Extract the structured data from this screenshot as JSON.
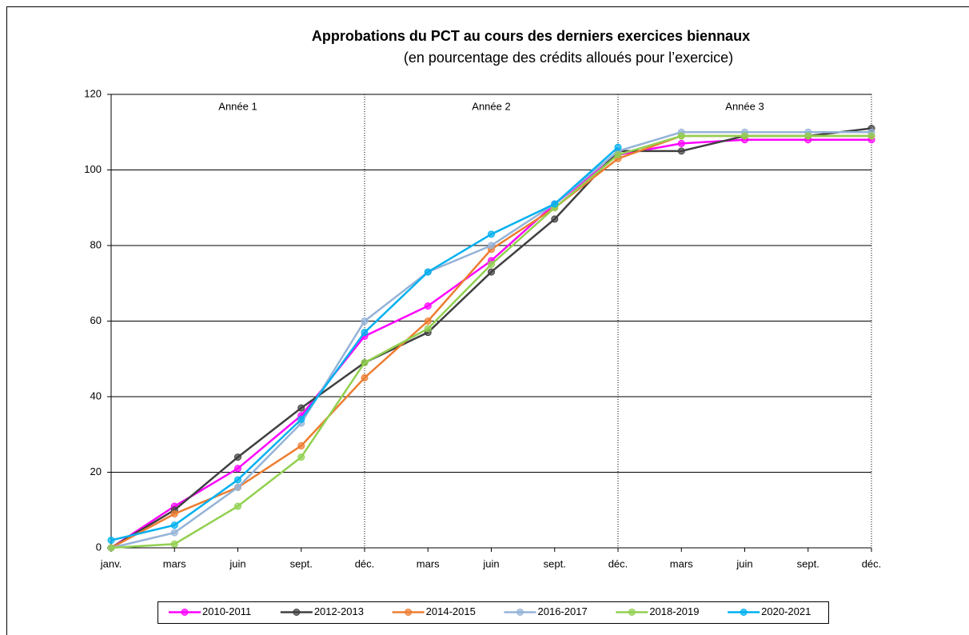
{
  "chart_data": {
    "type": "line",
    "title": "Approbations du PCT au cours des derniers exercices biennaux",
    "subtitle": "(en pourcentage des crédits alloués pour l’exercice)",
    "annotations": [
      "Année 1",
      "Année 2",
      "Année 3"
    ],
    "categories": [
      "janv.",
      "mars",
      "juin",
      "sept.",
      "déc.",
      "mars",
      "juin",
      "sept.",
      "déc.",
      "mars",
      "juin",
      "sept.",
      "déc."
    ],
    "ylim": [
      0,
      120
    ],
    "yticks": [
      0,
      20,
      40,
      60,
      80,
      100,
      120
    ],
    "grid": true,
    "legend": "bottom",
    "series": [
      {
        "name": "2010-2011",
        "color": "#ff00ff",
        "values": [
          0,
          11,
          21,
          35,
          56,
          64,
          76,
          91,
          104,
          107,
          108,
          108,
          108
        ]
      },
      {
        "name": "2012-2013",
        "color": "#404040",
        "values": [
          0,
          10,
          24,
          37,
          49,
          57,
          73,
          87,
          105,
          105,
          109,
          109,
          111
        ]
      },
      {
        "name": "2014-2015",
        "color": "#ed7d31",
        "values": [
          0,
          9,
          16,
          27,
          45,
          60,
          79,
          90,
          103,
          109,
          109,
          109,
          109
        ]
      },
      {
        "name": "2016-2017",
        "color": "#95b3d7",
        "values": [
          0,
          4,
          16,
          33,
          60,
          73,
          80,
          91,
          105,
          110,
          110,
          110,
          110
        ]
      },
      {
        "name": "2018-2019",
        "color": "#92d050",
        "values": [
          0,
          1,
          11,
          24,
          49,
          58,
          75,
          90,
          104,
          109,
          109,
          109,
          109
        ]
      },
      {
        "name": "2020-2021",
        "color": "#00b0f0",
        "values": [
          2,
          6,
          18,
          34,
          57,
          73,
          83,
          91,
          106,
          null,
          null,
          null,
          null
        ]
      }
    ]
  }
}
